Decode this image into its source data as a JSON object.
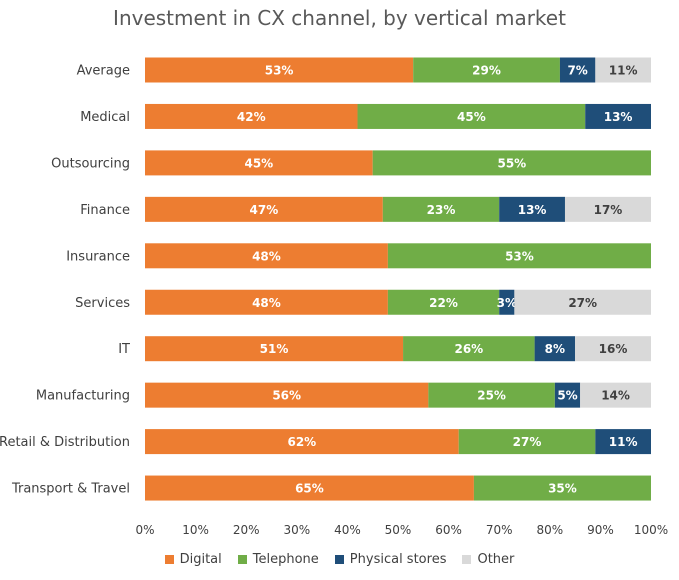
{
  "chart_data": {
    "type": "bar",
    "orientation": "horizontal",
    "stacked": true,
    "title": "Investment in CX channel, by vertical market",
    "categories": [
      "Average",
      "Medical",
      "Outsourcing",
      "Finance",
      "Insurance",
      "Services",
      "IT",
      "Manufacturing",
      "Retail & Distribution",
      "Transport & Travel"
    ],
    "series": [
      {
        "name": "Digital",
        "color": "#ED7D31",
        "values": [
          53,
          42,
          45,
          47,
          48,
          48,
          51,
          56,
          62,
          65
        ],
        "labels": [
          "53%",
          "42%",
          "45%",
          "47%",
          "48%",
          "48%",
          "51%",
          "56%",
          "62%",
          "65%"
        ]
      },
      {
        "name": "Telephone",
        "color": "#70AD47",
        "values": [
          29,
          45,
          55,
          23,
          53,
          22,
          26,
          25,
          27,
          35
        ],
        "labels": [
          "29%",
          "45%",
          "55%",
          "23%",
          "53%",
          "22%",
          "26%",
          "25%",
          "27%",
          "35%"
        ]
      },
      {
        "name": "Physical stores",
        "color": "#1F4E79",
        "values": [
          7,
          13,
          0,
          13,
          0,
          3,
          8,
          5,
          11,
          0
        ],
        "labels": [
          "7%",
          "13%",
          "",
          "13%",
          "",
          "3%",
          "8%",
          "5%",
          "11%",
          ""
        ]
      },
      {
        "name": "Other",
        "color": "#D9D9D9",
        "values": [
          11,
          0,
          0,
          17,
          0,
          27,
          16,
          14,
          0,
          0
        ],
        "labels": [
          "11%",
          "",
          "",
          "17%",
          "",
          "27%",
          "16%",
          "14%",
          "",
          ""
        ]
      }
    ],
    "xlim": [
      0,
      100
    ],
    "xticks": [
      "0%",
      "10%",
      "20%",
      "30%",
      "40%",
      "50%",
      "60%",
      "70%",
      "80%",
      "90%",
      "100%"
    ],
    "legend_position": "bottom",
    "grid": false
  }
}
